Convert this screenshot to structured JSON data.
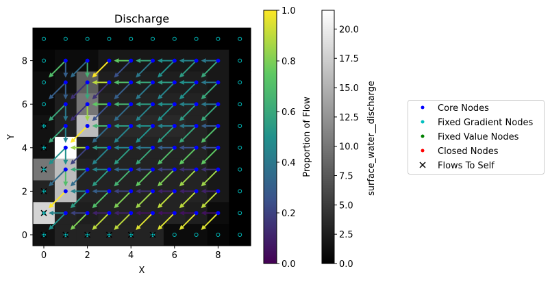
{
  "chart_data": {
    "type": "heatmap",
    "title": "Discharge",
    "xlabel": "X",
    "ylabel": "Y",
    "xlim": [
      -0.5,
      9.5
    ],
    "ylim": [
      -0.5,
      9.5
    ],
    "xticks": [
      0,
      2,
      4,
      6,
      8
    ],
    "yticks": [
      0,
      2,
      4,
      6,
      8
    ],
    "discharge_rows_top_to_bottom": [
      [
        0,
        0,
        0,
        0,
        0,
        0,
        0,
        0,
        0,
        0
      ],
      [
        0.5,
        1,
        1,
        2,
        2,
        2,
        2,
        2,
        2,
        0
      ],
      [
        1,
        1.5,
        8,
        2.5,
        2.5,
        2.5,
        2.5,
        2.5,
        2,
        0
      ],
      [
        1,
        2.5,
        10,
        3,
        3,
        3,
        3,
        3,
        2,
        0
      ],
      [
        1.5,
        3,
        16,
        3.5,
        3.5,
        3.5,
        3.5,
        3,
        2,
        0
      ],
      [
        1.5,
        21.5,
        2.5,
        3,
        3,
        3,
        3,
        3,
        2,
        0
      ],
      [
        10,
        16,
        3,
        3,
        3,
        3,
        3,
        3,
        2,
        0
      ],
      [
        3,
        16,
        3,
        3,
        3,
        3,
        3,
        3,
        2,
        0
      ],
      [
        18,
        3,
        2.5,
        3,
        3,
        3,
        3,
        2.5,
        1,
        0
      ],
      [
        1.5,
        3,
        3,
        3,
        3,
        3,
        1,
        1,
        0.5,
        0
      ]
    ],
    "flows": [
      {
        "node": [
          1,
          8
        ],
        "S": 0.3,
        "SW": 0.7
      },
      {
        "node": [
          2,
          8
        ],
        "S": 0.65,
        "SW": 0.35
      },
      {
        "node": [
          3,
          8
        ],
        "SW": 1.0
      },
      {
        "node": [
          4,
          8
        ],
        "W": 0.75,
        "SW": 0.25
      },
      {
        "node": [
          5,
          8
        ],
        "W": 0.6,
        "SW": 0.4
      },
      {
        "node": [
          6,
          8
        ],
        "W": 0.5,
        "SW": 0.5
      },
      {
        "node": [
          7,
          8
        ],
        "W": 0.45,
        "SW": 0.55
      },
      {
        "node": [
          8,
          8
        ],
        "W": 0.4,
        "SW": 0.6
      },
      {
        "node": [
          1,
          7
        ],
        "S": 0.3,
        "SW": 0.3
      },
      {
        "node": [
          2,
          7
        ],
        "S": 0.6,
        "SW": 0.15
      },
      {
        "node": [
          3,
          7
        ],
        "W": 0.9,
        "SW": 0.15
      },
      {
        "node": [
          4,
          7
        ],
        "W": 0.7,
        "SW": 0.3
      },
      {
        "node": [
          5,
          7
        ],
        "W": 0.6,
        "SW": 0.4
      },
      {
        "node": [
          6,
          7
        ],
        "W": 0.55,
        "SW": 0.45
      },
      {
        "node": [
          7,
          7
        ],
        "W": 0.5,
        "SW": 0.5
      },
      {
        "node": [
          8,
          7
        ],
        "W": 0.4,
        "SW": 0.6
      },
      {
        "node": [
          1,
          6
        ],
        "S": 0.4,
        "SW": 0.6
      },
      {
        "node": [
          2,
          6
        ],
        "S": 0.85,
        "SW": 0.15
      },
      {
        "node": [
          3,
          6
        ],
        "W": 0.75,
        "SW": 0.25
      },
      {
        "node": [
          4,
          6
        ],
        "W": 0.65,
        "SW": 0.35
      },
      {
        "node": [
          5,
          6
        ],
        "W": 0.55,
        "SW": 0.45
      },
      {
        "node": [
          6,
          6
        ],
        "W": 0.5,
        "SW": 0.5
      },
      {
        "node": [
          7,
          6
        ],
        "W": 0.45,
        "SW": 0.55
      },
      {
        "node": [
          8,
          6
        ],
        "W": 0.4,
        "SW": 0.6
      },
      {
        "node": [
          1,
          5
        ],
        "S": 0.45,
        "SW": 0.6
      },
      {
        "node": [
          2,
          5
        ],
        "SW": 1.0
      },
      {
        "node": [
          3,
          5
        ],
        "W": 0.65,
        "SW": 0.35
      },
      {
        "node": [
          4,
          5
        ],
        "W": 0.55,
        "SW": 0.45
      },
      {
        "node": [
          5,
          5
        ],
        "W": 0.5,
        "SW": 0.5
      },
      {
        "node": [
          6,
          5
        ],
        "W": 0.45,
        "SW": 0.55
      },
      {
        "node": [
          7,
          5
        ],
        "W": 0.4,
        "SW": 0.6
      },
      {
        "node": [
          8,
          5
        ],
        "W": 0.3,
        "SW": 0.7
      },
      {
        "node": [
          1,
          4
        ],
        "S": 0.5,
        "SW": 0.5
      },
      {
        "node": [
          2,
          4
        ],
        "W": 0.85,
        "SW": 0.2
      },
      {
        "node": [
          3,
          4
        ],
        "W": 0.55,
        "SW": 0.45
      },
      {
        "node": [
          4,
          4
        ],
        "W": 0.45,
        "SW": 0.55
      },
      {
        "node": [
          5,
          4
        ],
        "W": 0.4,
        "SW": 0.6
      },
      {
        "node": [
          6,
          4
        ],
        "W": 0.3,
        "SW": 0.7
      },
      {
        "node": [
          7,
          4
        ],
        "W": 0.25,
        "SW": 0.75
      },
      {
        "node": [
          8,
          4
        ],
        "W": 0.25,
        "SW": 0.75
      },
      {
        "node": [
          1,
          3
        ],
        "S": 0.7,
        "SW": 0.35
      },
      {
        "node": [
          2,
          3
        ],
        "W": 0.6,
        "SW": 0.35
      },
      {
        "node": [
          3,
          3
        ],
        "W": 0.45,
        "SW": 0.55
      },
      {
        "node": [
          4,
          3
        ],
        "W": 0.35,
        "SW": 0.65
      },
      {
        "node": [
          5,
          3
        ],
        "W": 0.25,
        "SW": 0.75
      },
      {
        "node": [
          6,
          3
        ],
        "W": 0.2,
        "SW": 0.8
      },
      {
        "node": [
          7,
          3
        ],
        "W": 0.15,
        "SW": 0.85
      },
      {
        "node": [
          8,
          3
        ],
        "W": 0.15,
        "SW": 0.85
      },
      {
        "node": [
          1,
          2
        ],
        "SW": 1.0
      },
      {
        "node": [
          2,
          2
        ],
        "W": 0.45,
        "SW": 0.55
      },
      {
        "node": [
          3,
          2
        ],
        "W": 0.3,
        "SW": 0.7
      },
      {
        "node": [
          4,
          2
        ],
        "W": 0.2,
        "SW": 0.8
      },
      {
        "node": [
          5,
          2
        ],
        "W": 0.15,
        "SW": 0.85
      },
      {
        "node": [
          6,
          2
        ],
        "W": 0.1,
        "SW": 0.9
      },
      {
        "node": [
          7,
          2
        ],
        "W": 0.1,
        "SW": 0.9
      },
      {
        "node": [
          8,
          2
        ],
        "W": 0.1,
        "SW": 0.9
      },
      {
        "node": [
          1,
          1
        ],
        "W": 0.45,
        "SW": 0.5
      },
      {
        "node": [
          2,
          1
        ],
        "W": 0.2,
        "SW": 0.8
      },
      {
        "node": [
          3,
          1
        ],
        "W": 0.1,
        "SW": 0.9
      },
      {
        "node": [
          4,
          1
        ],
        "W": 0.1,
        "SW": 0.9
      },
      {
        "node": [
          5,
          1
        ],
        "W": 0.05,
        "SW": 0.95
      },
      {
        "node": [
          6,
          1
        ],
        "W": 0.05,
        "SW": 0.95
      },
      {
        "node": [
          7,
          1
        ],
        "W": 0.05,
        "SW": 0.95
      },
      {
        "node": [
          8,
          1
        ],
        "W": 0.05,
        "SW": 0.95
      }
    ],
    "flows_to_self": [
      [
        0,
        0
      ],
      [
        0,
        1
      ],
      [
        0,
        2
      ],
      [
        0,
        3
      ],
      [
        0,
        4
      ],
      [
        0,
        5
      ],
      [
        1,
        0
      ],
      [
        2,
        0
      ],
      [
        3,
        0
      ],
      [
        4,
        0
      ],
      [
        5,
        0
      ]
    ],
    "colorbar_flow": {
      "label": "Proportion of Flow",
      "range": [
        0,
        1
      ],
      "ticks": [
        "0.0",
        "0.2",
        "0.4",
        "0.6",
        "0.8",
        "1.0"
      ],
      "colormap": "viridis"
    },
    "colorbar_discharge": {
      "label": "surface_water__discharge",
      "range": [
        0,
        21.6
      ],
      "ticks": [
        "0.0",
        "2.5",
        "5.0",
        "7.5",
        "10.0",
        "12.5",
        "15.0",
        "17.5",
        "20.0"
      ],
      "colormap": "gray"
    },
    "legend": {
      "placement": "right",
      "entries": [
        {
          "label": "Core Nodes",
          "color": "#0000ff",
          "marker": "dot"
        },
        {
          "label": "Fixed Gradient Nodes",
          "color": "#00bfbf",
          "marker": "dot"
        },
        {
          "label": "Fixed Value Nodes",
          "color": "#008000",
          "marker": "dot"
        },
        {
          "label": "Closed Nodes",
          "color": "#ff0000",
          "marker": "dot"
        },
        {
          "label": "Flows To Self",
          "color": "#000000",
          "marker": "x"
        }
      ]
    }
  }
}
